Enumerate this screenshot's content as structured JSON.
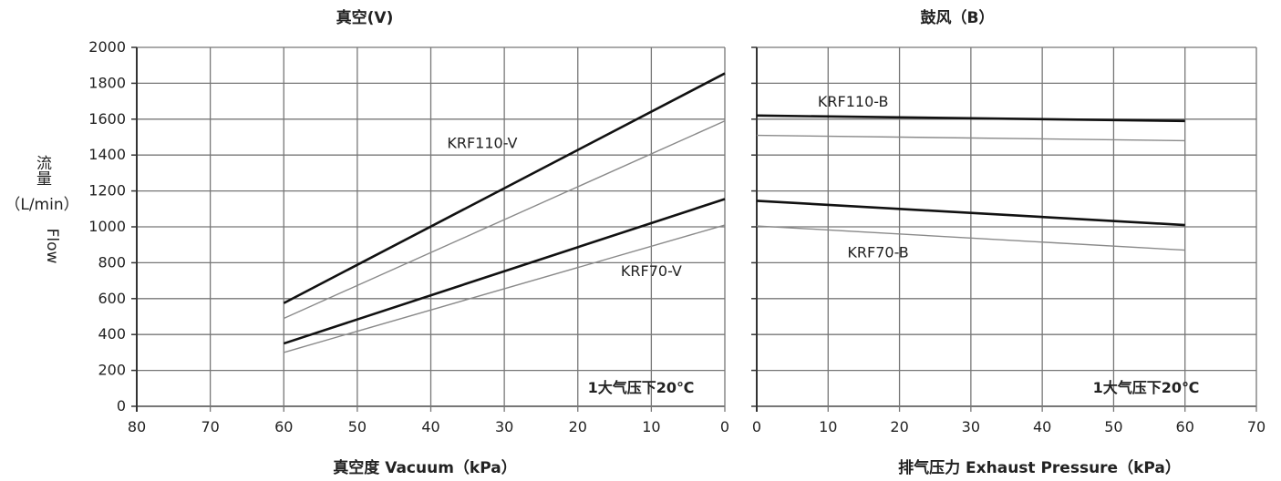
{
  "chart_data": [
    {
      "type": "line",
      "title": "真空(V)",
      "xlabel": "真空度 Vacuum（kPa）",
      "ylabel_top": "流量",
      "ylabel_unit": "（L/min）",
      "ylabel_en": "Flow",
      "note": "1大气压下20℃",
      "x_reversed": true,
      "xlim": [
        80,
        0
      ],
      "ylim": [
        0,
        2000
      ],
      "x_ticks": [
        80,
        70,
        60,
        50,
        40,
        30,
        20,
        10,
        0
      ],
      "y_ticks": [
        0,
        200,
        400,
        600,
        800,
        1000,
        1200,
        1400,
        1600,
        1800,
        2000
      ],
      "grid": true,
      "series": [
        {
          "name": "KRF110-V",
          "weight": "bold",
          "x": [
            60,
            0
          ],
          "y": [
            575,
            1855
          ]
        },
        {
          "weight": "thin",
          "x": [
            60,
            0
          ],
          "y": [
            490,
            1590
          ]
        },
        {
          "name": "KRF70-V",
          "weight": "bold",
          "x": [
            60,
            0
          ],
          "y": [
            350,
            1155
          ]
        },
        {
          "weight": "thin",
          "x": [
            60,
            0
          ],
          "y": [
            300,
            1010
          ]
        }
      ],
      "labels": {
        "KRF110-V": {
          "text": "KRF110-V",
          "x": 33,
          "y": 1440
        },
        "KRF70-V": {
          "text": "KRF70-V",
          "x": 10,
          "y": 725
        }
      }
    },
    {
      "type": "line",
      "title": "鼓风（B）",
      "xlabel": "排气压力  Exhaust Pressure（kPa）",
      "note": "1大气压下20℃",
      "x_reversed": false,
      "xlim": [
        0,
        70
      ],
      "ylim": [
        0,
        2000
      ],
      "x_ticks": [
        0,
        10,
        20,
        30,
        40,
        50,
        60,
        70
      ],
      "grid": true,
      "series": [
        {
          "name": "KRF110-B",
          "weight": "bold",
          "x": [
            0,
            60
          ],
          "y": [
            1620,
            1590
          ]
        },
        {
          "weight": "thin",
          "x": [
            0,
            60
          ],
          "y": [
            1510,
            1480
          ]
        },
        {
          "name": "KRF70-B",
          "weight": "bold",
          "x": [
            0,
            60
          ],
          "y": [
            1145,
            1010
          ]
        },
        {
          "weight": "thin",
          "x": [
            0,
            60
          ],
          "y": [
            1005,
            870
          ]
        }
      ],
      "labels": {
        "KRF110-B": {
          "text": "KRF110-B",
          "x": 13.5,
          "y": 1670
        },
        "KRF70-B": {
          "text": "KRF70-B",
          "x": 17,
          "y": 830
        }
      }
    }
  ]
}
